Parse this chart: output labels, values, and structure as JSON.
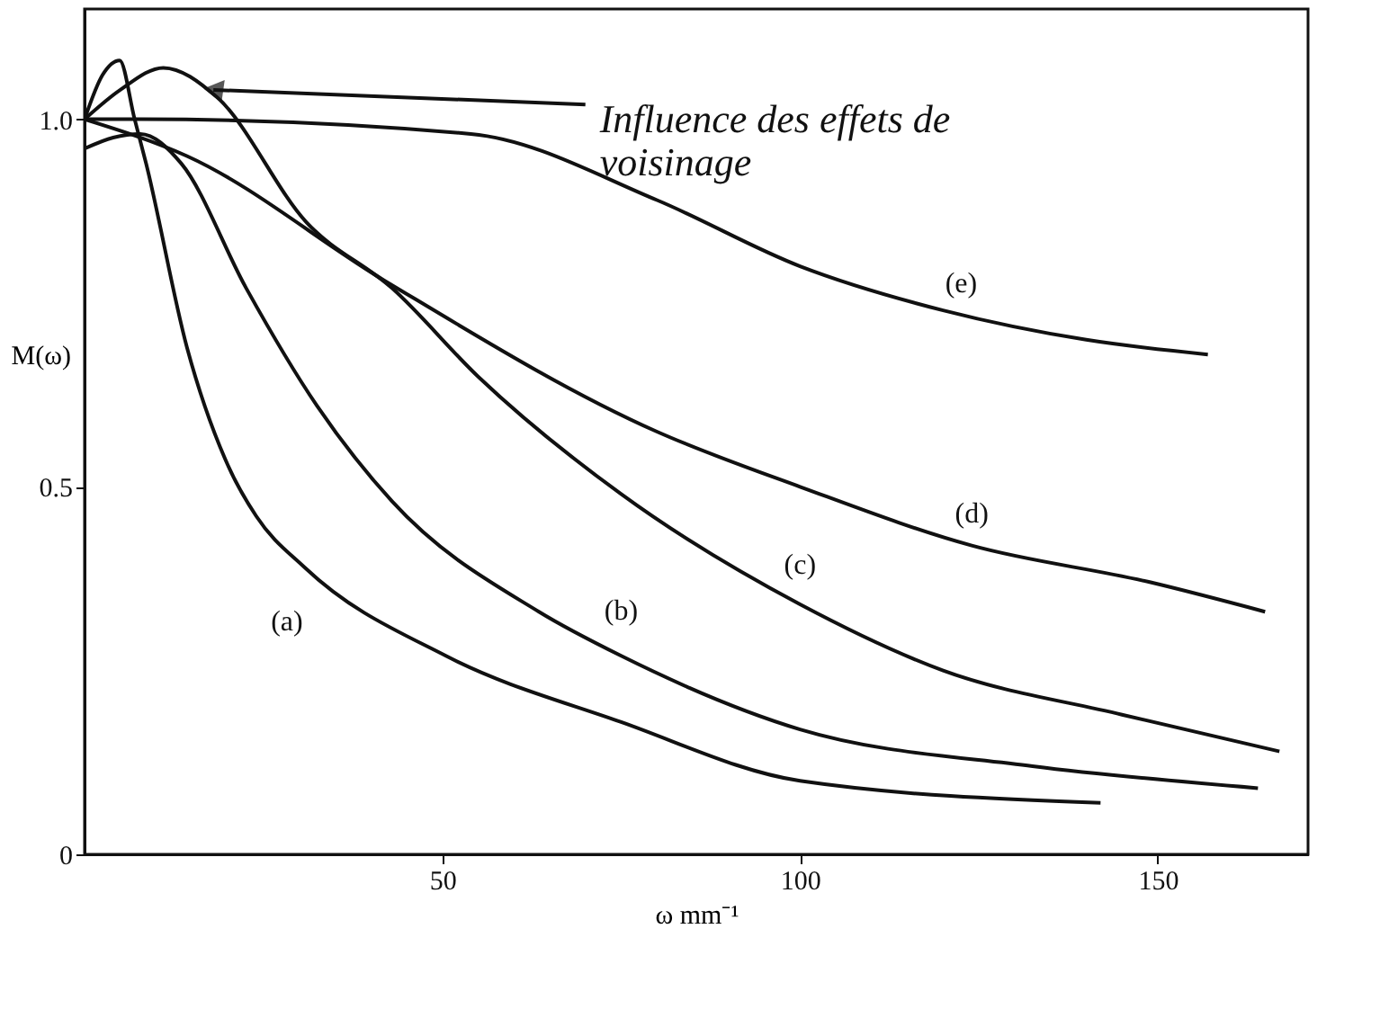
{
  "chart_data": {
    "type": "line",
    "xlabel": "ω mm⁻¹",
    "ylabel": "M(ω)",
    "xlim": [
      0,
      171
    ],
    "ylim": [
      0,
      1.15
    ],
    "xticks": [
      50,
      100,
      150
    ],
    "yticks": [
      0,
      0.5,
      {
        "value": 1.0,
        "label": "1.0"
      }
    ],
    "grid": false,
    "marker": "none",
    "line_style": "solid",
    "series": [
      {
        "name": "(a)",
        "color": "#111111",
        "x": [
          0,
          2.5,
          4.9,
          7,
          8.6,
          14.3,
          20,
          24,
          30.8,
          50.5,
          75,
          100,
          142
        ],
        "values": [
          1.0,
          1.06,
          1.08,
          1.0,
          0.94,
          0.69,
          0.53,
          0.46,
          0.39,
          0.27,
          0.18,
          0.1,
          0.07
        ]
      },
      {
        "name": "(b)",
        "color": "#111111",
        "x": [
          0,
          4,
          7.8,
          13.5,
          22.6,
          32.5,
          43,
          63.5,
          75,
          100,
          132.5,
          164
        ],
        "values": [
          0.96,
          0.975,
          0.98,
          0.94,
          0.77,
          0.61,
          0.48,
          0.33,
          0.27,
          0.17,
          0.12,
          0.09
        ]
      },
      {
        "name": "(c)",
        "color": "#111111",
        "x": [
          0,
          5,
          11,
          18.5,
          31,
          43,
          55,
          75,
          100,
          120,
          145,
          167
        ],
        "values": [
          1.0,
          1.04,
          1.07,
          1.03,
          0.86,
          0.77,
          0.65,
          0.49,
          0.34,
          0.25,
          0.19,
          0.14
        ]
      },
      {
        "name": "(d)",
        "color": "#111111",
        "x": [
          0,
          14.3,
          42,
          80,
          100,
          124,
          149,
          165
        ],
        "values": [
          1.0,
          0.95,
          0.78,
          0.575,
          0.5,
          0.42,
          0.37,
          0.33
        ]
      },
      {
        "name": "(e)",
        "color": "#111111",
        "x": [
          0,
          8,
          54,
          80,
          100,
          120,
          140,
          157
        ],
        "values": [
          1.0,
          1.0,
          0.98,
          0.89,
          0.8,
          0.74,
          0.7,
          0.68
        ]
      }
    ],
    "annotations": [
      {
        "text": "Influence des effets de voisinage",
        "x": 17,
        "y": 1.04
      }
    ]
  }
}
